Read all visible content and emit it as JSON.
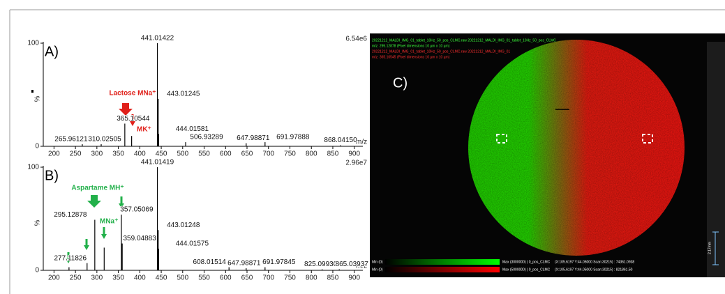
{
  "chart_data": [
    {
      "type": "spectrum",
      "panel_label": "A)",
      "max_intensity": "6.54e6",
      "y_label": "%",
      "x_label": "m/z",
      "x": [
        265.96121,
        310.02505,
        365.10544,
        381,
        441.01422,
        443.01245,
        444.01581,
        506.93289,
        647.98871,
        691.97888,
        868.0415
      ],
      "values": [
        2,
        2,
        22,
        10,
        100,
        46,
        12,
        4,
        3,
        4,
        1
      ],
      "x_labels": [
        "265.96121",
        "310.02505",
        "365.10544",
        null,
        "441.01422",
        "443.01245",
        "444.01581",
        "506.93289",
        "647.98871",
        "691.97888",
        "868.04150"
      ],
      "color": "#000000",
      "xlim": [
        175,
        920
      ],
      "xticks": [
        200,
        250,
        300,
        350,
        400,
        450,
        500,
        550,
        600,
        650,
        700,
        750,
        800,
        850,
        900
      ],
      "ylim": [
        0,
        100
      ],
      "yticks": [
        0,
        100
      ],
      "annotations": [
        {
          "text": "Lactose MNa⁺",
          "color": "#e0201a"
        },
        {
          "text": "MK⁺",
          "color": "#e0201a"
        }
      ]
    },
    {
      "type": "spectrum",
      "panel_label": "B)",
      "max_intensity": "2.96e7",
      "y_label": "%",
      "x_label": "m/z",
      "x": [
        235,
        277.11826,
        295.12878,
        317,
        357.05069,
        359.04883,
        441.01419,
        443.01248,
        444.01575,
        608.01514,
        647.98871,
        691.97845,
        825.0993,
        865.03937
      ],
      "values": [
        3,
        7,
        49,
        22,
        54,
        26,
        100,
        39,
        21,
        3,
        2,
        3,
        1,
        1
      ],
      "x_labels": [
        null,
        "277.11826",
        "295.12878",
        null,
        "357.05069",
        "359.04883",
        "441.01419",
        "443.01248",
        "444.01575",
        "608.01514",
        "647.98871",
        "691.97845",
        "825.09930",
        "865.03937"
      ],
      "color": "#000000",
      "xlim": [
        175,
        920
      ],
      "xticks": [
        200,
        250,
        300,
        350,
        400,
        450,
        500,
        550,
        600,
        650,
        700,
        750,
        800,
        850,
        900
      ],
      "ylim": [
        0,
        100
      ],
      "yticks": [
        0,
        100
      ],
      "annotations": [
        {
          "text": "Aspartame MH⁺",
          "color": "#22b04a"
        },
        {
          "text": "MNa⁺",
          "color": "#22b04a"
        }
      ]
    }
  ],
  "image_panel": {
    "label": "C)",
    "header": [
      "20221212_MALDI_IMG_01_tablet_10Hz_50_pos_CLMC.raw 20221212_MALDI_IMG_01_tablet_10Hz_50_pos_CLMC",
      "m/z: 295.12878 (Pixel dimensions 10 µm x 10 µm)",
      "20221212_MALDI_IMG_01_tablet_10Hz_50_pos_CLMC.raw 20221212_MALDI_IMG_01",
      "m/z: 365.10545 (Pixel dimensions 10 µm x 10 µm)"
    ],
    "legend": [
      {
        "min": "Min (0)",
        "max": "Max (3000000) | 0_pos_CLMC",
        "readout": "(X:105.6197 Y:44.05000 Scan:30215) : 74361.0938"
      },
      {
        "min": "Min (0)",
        "max": "Max (5000000) | 0_pos_CLMC",
        "readout": "(X:105.6197 Y:44.05000 Scan:30215) : 821861.50"
      }
    ],
    "scale_bar": "2.17mm"
  }
}
